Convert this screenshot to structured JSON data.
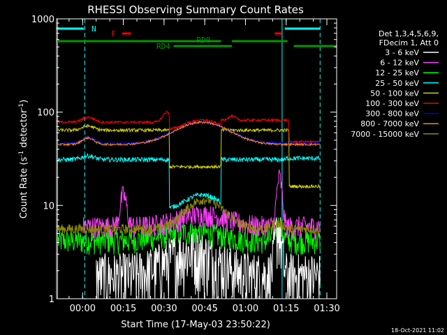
{
  "chart_data": {
    "type": "line",
    "title": "RHESSI Observing Summary Count Rates",
    "xlabel": "Start Time (17-May-03 23:50:22)",
    "ylabel_main": "Count Rate (s",
    "ylabel_sup1": "-1",
    "ylabel_mid": " detector",
    "ylabel_sup2": "-1",
    "ylabel_end": ")",
    "y_scale": "log",
    "ylim": [
      1,
      1000
    ],
    "xlim_minutes": [
      -9.6,
      93.6
    ],
    "x_ticks": [
      {
        "label": "00:00",
        "min": 0
      },
      {
        "label": "00:15",
        "min": 15
      },
      {
        "label": "00:30",
        "min": 30
      },
      {
        "label": "00:45",
        "min": 45
      },
      {
        "label": "01:00",
        "min": 60
      },
      {
        "label": "01:15",
        "min": 75
      },
      {
        "label": "01:30",
        "min": 90
      }
    ],
    "y_ticks": [
      {
        "label": "1",
        "v": 1
      },
      {
        "label": "10",
        "v": 10
      },
      {
        "label": "100",
        "v": 100
      },
      {
        "label": "1000",
        "v": 1000
      }
    ],
    "legend": {
      "header1": "Det 1,3,4,5,6,9,",
      "header2": "FDecim 1, Att 0",
      "entries": [
        {
          "name": "3 - 6 keV",
          "color": "#ffffff"
        },
        {
          "name": "6 - 12 keV",
          "color": "#ff40ff"
        },
        {
          "name": "12 - 25 keV",
          "color": "#00ff00"
        },
        {
          "name": "25 - 50 keV",
          "color": "#00ffff"
        },
        {
          "name": "50 - 100 keV",
          "color": "#d4d400"
        },
        {
          "name": "100 - 300 keV",
          "color": "#ff0000"
        },
        {
          "name": "300 - 800 keV",
          "color": "#0000ff"
        },
        {
          "name": "800 - 7000 keV",
          "color": "#ff8c00"
        },
        {
          "name": "7000 - 15000 keV",
          "color": "#8b8b00"
        }
      ]
    },
    "annotations": {
      "night_label": "N",
      "flare_label": "F",
      "rd0_label": "RD0",
      "rd4_label": "RD4"
    },
    "timestamp": "18-Oct-2021 11:02"
  }
}
